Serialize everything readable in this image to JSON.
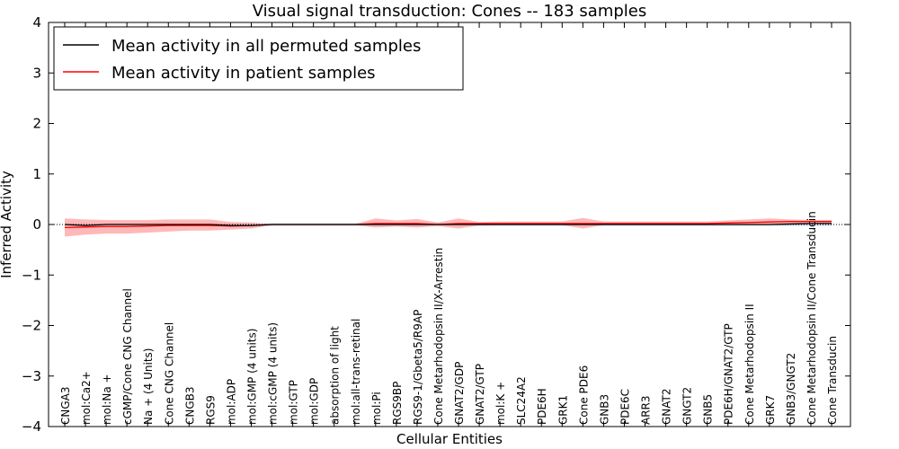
{
  "chart_data": {
    "type": "line",
    "title": "Visual signal transduction: Cones -- 183 samples",
    "xlabel": "Cellular Entities",
    "ylabel": "Inferred Activity",
    "ylim": [
      -4,
      4
    ],
    "yticks": [
      -4,
      -3,
      -2,
      -1,
      0,
      1,
      2,
      3,
      4
    ],
    "legend_position": "top-left",
    "categories": [
      "CNGA3",
      "mol:Ca2+",
      "mol:Na +",
      "cGMP/Cone CNG Channel",
      "Na + (4 Units)",
      "Cone CNG Channel",
      "CNGB3",
      "RGS9",
      "mol:ADP",
      "mol:GMP (4 units)",
      "mol:cGMP (4 units)",
      "mol:GTP",
      "mol:GDP",
      "absorption of light",
      "mol:all-trans-retinal",
      "mol:Pi",
      "RGS9BP",
      "RGS9-1/Gbeta5/R9AP",
      "Cone Metarhodopsin II/X-Arrestin",
      "GNAT2/GDP",
      "GNAT2/GTP",
      "mol:K +",
      "SLC24A2",
      "PDE6H",
      "GRK1",
      "Cone PDE6",
      "GNB3",
      "PDE6C",
      "ARR3",
      "GNAT2",
      "GNGT2",
      "GNB5",
      "PDE6H/GNAT2/GTP",
      "Cone Metarhodopsin II",
      "GRK7",
      "GNB3/GNGT2",
      "Cone Metarhodopsin II/Cone Transducin",
      "Cone Transducin"
    ],
    "series": [
      {
        "name": "Mean activity in all permuted samples",
        "color": "#000000",
        "values": [
          0.0,
          -0.02,
          0.0,
          0.0,
          0.0,
          0.0,
          0.0,
          0.0,
          -0.02,
          -0.02,
          0.0,
          0.0,
          0.0,
          0.0,
          0.0,
          0.0,
          0.0,
          0.0,
          0.0,
          0.0,
          0.0,
          0.0,
          0.0,
          0.0,
          0.0,
          0.0,
          0.0,
          0.0,
          0.0,
          0.0,
          0.0,
          0.0,
          0.0,
          0.0,
          0.0,
          0.01,
          0.02,
          0.02
        ],
        "band": [
          0.03,
          0.03,
          0.03,
          0.03,
          0.03,
          0.03,
          0.03,
          0.03,
          0.03,
          0.03,
          0.03,
          0.03,
          0.03,
          0.03,
          0.03,
          0.03,
          0.03,
          0.03,
          0.03,
          0.03,
          0.03,
          0.03,
          0.03,
          0.03,
          0.03,
          0.03,
          0.03,
          0.03,
          0.03,
          0.03,
          0.03,
          0.03,
          0.03,
          0.03,
          0.03,
          0.04,
          0.05,
          0.05
        ],
        "band_color": "#bfcfe0"
      },
      {
        "name": "Mean activity in patient samples",
        "color": "#ff0000",
        "values": [
          -0.06,
          -0.05,
          -0.04,
          -0.04,
          -0.03,
          -0.02,
          -0.02,
          -0.02,
          -0.03,
          -0.02,
          0.0,
          0.0,
          0.0,
          0.0,
          0.0,
          0.02,
          0.02,
          0.02,
          0.0,
          0.02,
          0.02,
          0.02,
          0.02,
          0.02,
          0.02,
          0.02,
          0.02,
          0.02,
          0.02,
          0.02,
          0.02,
          0.02,
          0.03,
          0.04,
          0.05,
          0.06,
          0.06,
          0.06
        ],
        "upper": [
          0.12,
          0.1,
          0.09,
          0.09,
          0.09,
          0.1,
          0.1,
          0.1,
          0.05,
          0.04,
          0.01,
          0.01,
          0.01,
          0.01,
          0.01,
          0.12,
          0.08,
          0.11,
          0.04,
          0.12,
          0.05,
          0.06,
          0.06,
          0.06,
          0.06,
          0.13,
          0.06,
          0.06,
          0.06,
          0.06,
          0.06,
          0.06,
          0.08,
          0.1,
          0.12,
          0.1,
          0.09,
          0.09
        ],
        "lower": [
          -0.24,
          -0.2,
          -0.18,
          -0.18,
          -0.16,
          -0.14,
          -0.12,
          -0.12,
          -0.1,
          -0.08,
          -0.01,
          -0.01,
          -0.01,
          -0.01,
          -0.01,
          -0.06,
          -0.04,
          -0.06,
          -0.03,
          -0.08,
          -0.02,
          -0.01,
          -0.01,
          -0.01,
          -0.01,
          -0.08,
          -0.01,
          -0.01,
          -0.01,
          -0.01,
          -0.01,
          -0.01,
          0.0,
          0.0,
          0.0,
          0.02,
          0.03,
          0.03
        ],
        "band_color": "#ff9a9a"
      }
    ]
  }
}
